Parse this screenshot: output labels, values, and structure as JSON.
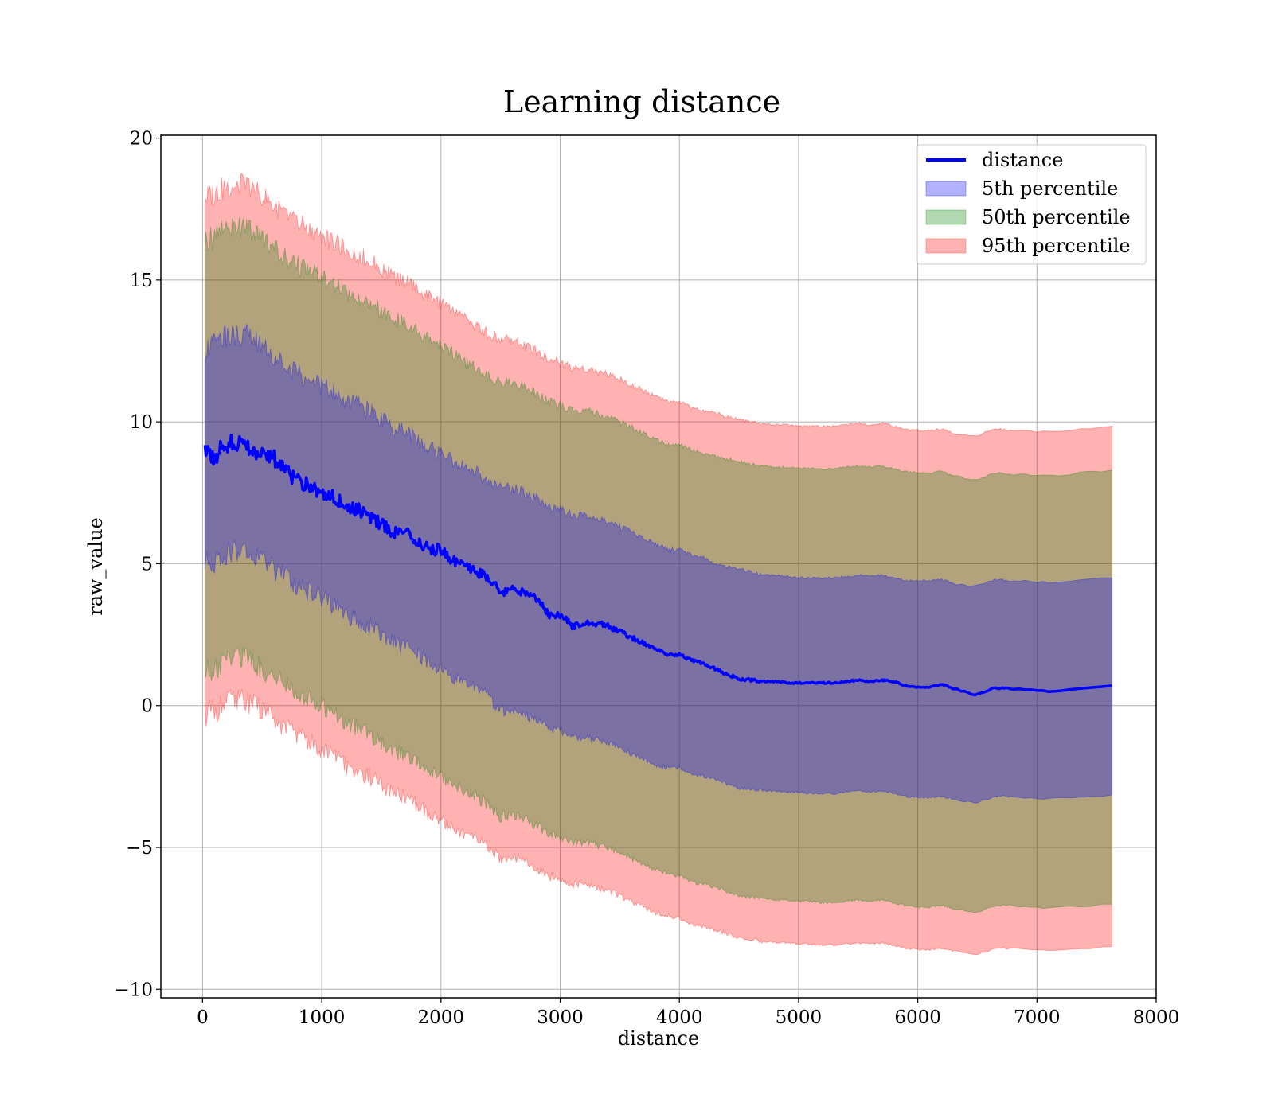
{
  "chart_data": {
    "type": "area",
    "title": "Learning distance",
    "xlabel": "distance",
    "ylabel": "raw_value",
    "xlim": [
      -350,
      8000
    ],
    "ylim": [
      -10.3,
      20.1
    ],
    "xticks": [
      0,
      1000,
      2000,
      3000,
      4000,
      5000,
      6000,
      7000,
      8000
    ],
    "xtick_labels": [
      "0",
      "1000",
      "2000",
      "3000",
      "4000",
      "5000",
      "6000",
      "7000",
      "8000"
    ],
    "yticks": [
      -10,
      -5,
      0,
      5,
      10,
      15,
      20
    ],
    "ytick_labels": [
      "−10",
      "−5",
      "0",
      "5",
      "10",
      "15",
      "20"
    ],
    "grid": true,
    "legend_position": "top-right",
    "x": [
      20,
      100,
      200,
      300,
      400,
      500,
      600,
      700,
      800,
      900,
      1000,
      1100,
      1200,
      1300,
      1400,
      1500,
      1600,
      1700,
      1800,
      1900,
      2000,
      2100,
      2200,
      2300,
      2400,
      2500,
      2600,
      2700,
      2800,
      2900,
      3000,
      3100,
      3200,
      3300,
      3400,
      3500,
      3600,
      3700,
      3800,
      3900,
      4000,
      4100,
      4200,
      4300,
      4400,
      4500,
      4600,
      4700,
      4800,
      4900,
      5000,
      5100,
      5200,
      5300,
      5400,
      5500,
      5600,
      5700,
      5800,
      5900,
      6000,
      6100,
      6200,
      6300,
      6480,
      6650,
      6800,
      7100,
      7630
    ],
    "series": [
      {
        "name": "distance",
        "kind": "line",
        "color": "#0000ff",
        "values": [
          8.85,
          8.8,
          9.2,
          9.3,
          9.0,
          8.9,
          8.7,
          8.3,
          7.9,
          7.7,
          7.6,
          7.3,
          7.1,
          6.9,
          6.7,
          6.4,
          6.1,
          6.1,
          5.8,
          5.5,
          5.5,
          5.1,
          4.9,
          4.7,
          4.5,
          4.0,
          4.1,
          4.0,
          3.8,
          3.2,
          3.2,
          2.8,
          2.9,
          2.9,
          2.8,
          2.6,
          2.4,
          2.2,
          2.0,
          1.8,
          1.8,
          1.6,
          1.5,
          1.3,
          1.1,
          0.95,
          0.9,
          0.85,
          0.85,
          0.8,
          0.8,
          0.8,
          0.8,
          0.8,
          0.85,
          0.9,
          0.85,
          0.9,
          0.85,
          0.7,
          0.65,
          0.65,
          0.75,
          0.6,
          0.38,
          0.62,
          0.6,
          0.5,
          0.7
        ]
      },
      {
        "name": "5th percentile",
        "kind": "band",
        "color": "#0000ff",
        "upper": [
          12.6,
          12.7,
          13.0,
          13.1,
          13.0,
          12.7,
          12.3,
          12.0,
          11.7,
          11.5,
          11.3,
          11.0,
          10.8,
          10.6,
          10.4,
          10.1,
          9.8,
          9.7,
          9.4,
          9.1,
          8.9,
          8.6,
          8.4,
          8.2,
          7.9,
          7.7,
          7.7,
          7.5,
          7.3,
          7.0,
          6.9,
          6.7,
          6.7,
          6.6,
          6.5,
          6.3,
          6.1,
          5.9,
          5.7,
          5.5,
          5.5,
          5.3,
          5.2,
          5.0,
          4.9,
          4.8,
          4.7,
          4.6,
          4.6,
          4.55,
          4.5,
          4.5,
          4.5,
          4.5,
          4.55,
          4.6,
          4.55,
          4.6,
          4.5,
          4.4,
          4.4,
          4.4,
          4.45,
          4.3,
          4.2,
          4.45,
          4.4,
          4.35,
          4.5
        ],
        "lower": [
          5.0,
          5.1,
          5.4,
          5.5,
          5.4,
          5.2,
          4.8,
          4.5,
          4.2,
          4.0,
          3.8,
          3.5,
          3.2,
          3.0,
          2.8,
          2.5,
          2.2,
          2.1,
          1.8,
          1.5,
          1.3,
          1.0,
          0.8,
          0.6,
          0.3,
          -0.2,
          -0.1,
          -0.3,
          -0.5,
          -0.8,
          -0.9,
          -1.1,
          -1.1,
          -1.2,
          -1.3,
          -1.5,
          -1.7,
          -1.9,
          -2.1,
          -2.2,
          -2.2,
          -2.4,
          -2.5,
          -2.6,
          -2.75,
          -2.9,
          -2.95,
          -3.0,
          -3.0,
          -3.05,
          -3.05,
          -3.1,
          -3.1,
          -3.1,
          -3.05,
          -3.0,
          -3.05,
          -3.0,
          -3.1,
          -3.2,
          -3.25,
          -3.25,
          -3.2,
          -3.3,
          -3.45,
          -3.2,
          -3.2,
          -3.3,
          -3.15
        ]
      },
      {
        "name": "50th percentile",
        "kind": "band",
        "color": "#008000",
        "upper": [
          16.4,
          16.5,
          16.8,
          16.9,
          16.8,
          16.5,
          16.1,
          15.8,
          15.5,
          15.3,
          15.1,
          14.8,
          14.6,
          14.4,
          14.2,
          13.9,
          13.6,
          13.5,
          13.2,
          12.9,
          12.7,
          12.4,
          12.1,
          11.9,
          11.6,
          11.4,
          11.4,
          11.2,
          11.0,
          10.7,
          10.6,
          10.4,
          10.4,
          10.3,
          10.2,
          10.0,
          9.8,
          9.6,
          9.4,
          9.2,
          9.2,
          9.0,
          8.9,
          8.8,
          8.7,
          8.6,
          8.5,
          8.45,
          8.4,
          8.4,
          8.35,
          8.35,
          8.35,
          8.35,
          8.4,
          8.45,
          8.4,
          8.45,
          8.35,
          8.25,
          8.2,
          8.2,
          8.25,
          8.1,
          7.95,
          8.2,
          8.15,
          8.1,
          8.3
        ],
        "lower": [
          1.2,
          1.3,
          1.6,
          1.7,
          1.6,
          1.3,
          1.0,
          0.7,
          0.4,
          0.2,
          0.0,
          -0.3,
          -0.6,
          -0.8,
          -1.0,
          -1.3,
          -1.6,
          -1.7,
          -2.0,
          -2.3,
          -2.5,
          -2.8,
          -3.0,
          -3.2,
          -3.5,
          -3.9,
          -3.8,
          -4.0,
          -4.2,
          -4.5,
          -4.6,
          -4.8,
          -4.8,
          -4.9,
          -5.0,
          -5.2,
          -5.4,
          -5.6,
          -5.8,
          -5.9,
          -6.0,
          -6.2,
          -6.3,
          -6.4,
          -6.55,
          -6.7,
          -6.75,
          -6.8,
          -6.85,
          -6.85,
          -6.9,
          -6.9,
          -6.95,
          -6.95,
          -6.9,
          -6.85,
          -6.9,
          -6.85,
          -6.95,
          -7.05,
          -7.1,
          -7.1,
          -7.05,
          -7.15,
          -7.3,
          -7.05,
          -7.05,
          -7.15,
          -7.0
        ]
      },
      {
        "name": "95th percentile",
        "kind": "band",
        "color": "#ff0000",
        "upper": [
          17.9,
          18.0,
          18.3,
          18.4,
          18.3,
          18.0,
          17.6,
          17.3,
          17.0,
          16.8,
          16.6,
          16.3,
          16.1,
          15.9,
          15.7,
          15.4,
          15.1,
          15.0,
          14.7,
          14.4,
          14.2,
          13.9,
          13.6,
          13.4,
          13.1,
          12.9,
          12.9,
          12.7,
          12.5,
          12.2,
          12.1,
          11.9,
          11.9,
          11.8,
          11.7,
          11.5,
          11.3,
          11.1,
          10.9,
          10.7,
          10.7,
          10.5,
          10.4,
          10.3,
          10.2,
          10.1,
          10.0,
          9.95,
          9.9,
          9.9,
          9.85,
          9.85,
          9.85,
          9.85,
          9.9,
          9.95,
          9.9,
          9.95,
          9.85,
          9.75,
          9.7,
          9.7,
          9.75,
          9.6,
          9.5,
          9.75,
          9.7,
          9.65,
          9.85
        ],
        "lower": [
          -0.3,
          -0.2,
          0.1,
          0.2,
          0.1,
          -0.2,
          -0.5,
          -0.8,
          -1.1,
          -1.3,
          -1.5,
          -1.8,
          -2.1,
          -2.3,
          -2.5,
          -2.8,
          -3.1,
          -3.2,
          -3.5,
          -3.8,
          -4.0,
          -4.3,
          -4.5,
          -4.7,
          -5.0,
          -5.4,
          -5.3,
          -5.5,
          -5.7,
          -6.0,
          -6.1,
          -6.3,
          -6.3,
          -6.4,
          -6.5,
          -6.7,
          -6.9,
          -7.1,
          -7.3,
          -7.4,
          -7.5,
          -7.7,
          -7.8,
          -7.9,
          -8.05,
          -8.2,
          -8.25,
          -8.3,
          -8.35,
          -8.35,
          -8.4,
          -8.4,
          -8.45,
          -8.45,
          -8.4,
          -8.35,
          -8.4,
          -8.35,
          -8.45,
          -8.55,
          -8.6,
          -8.6,
          -8.55,
          -8.65,
          -8.8,
          -8.55,
          -8.55,
          -8.65,
          -8.5
        ]
      }
    ]
  },
  "legend": {
    "items": [
      {
        "label": "distance",
        "kind": "line",
        "color": "#0000ff"
      },
      {
        "label": "5th percentile",
        "kind": "patch",
        "color": "#0000ff"
      },
      {
        "label": "50th percentile",
        "kind": "patch",
        "color": "#008000"
      },
      {
        "label": "95th percentile",
        "kind": "patch",
        "color": "#ff0000"
      }
    ]
  }
}
